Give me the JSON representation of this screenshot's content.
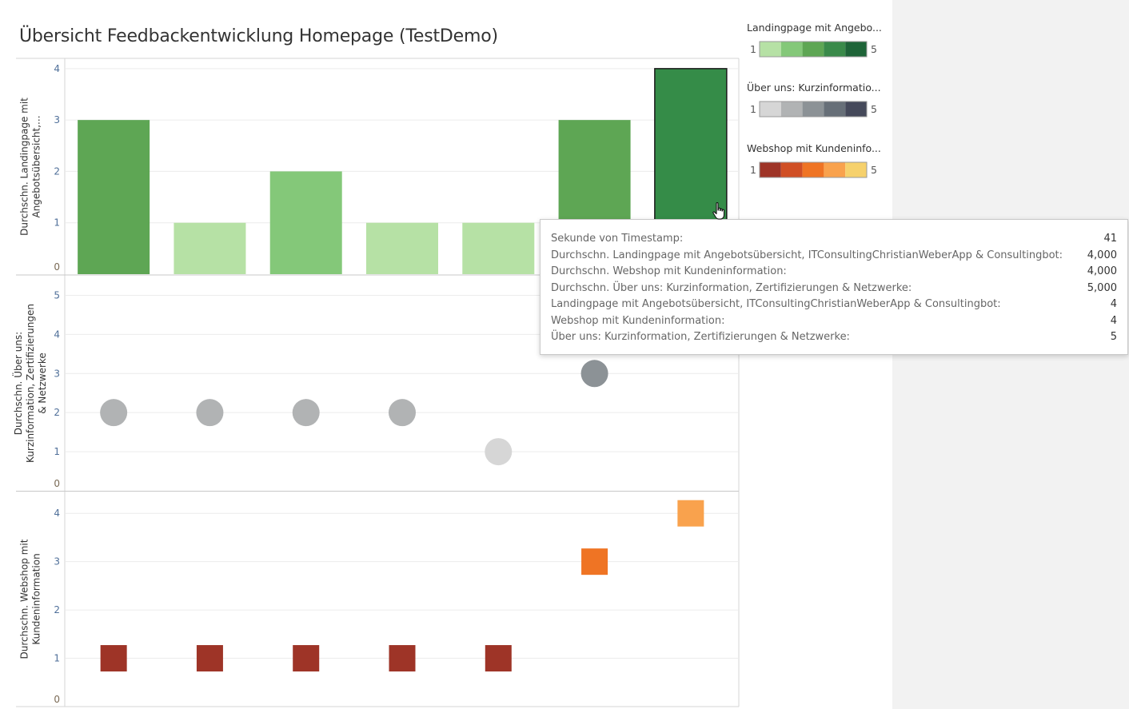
{
  "title": "Übersicht Feedbackentwicklung Homepage (TestDemo)",
  "legends": [
    {
      "title": "Landingpage mit Angebo...",
      "min": "1",
      "max": "5",
      "colors": [
        "#b6e1a5",
        "#84c879",
        "#5ea654",
        "#3a8a4a",
        "#1e6438"
      ]
    },
    {
      "title": "Über uns: Kurzinformatio...",
      "min": "1",
      "max": "5",
      "colors": [
        "#d6d6d6",
        "#b1b3b4",
        "#8c9296",
        "#676f78",
        "#45495a"
      ]
    },
    {
      "title": "Webshop mit Kundeninfo...",
      "min": "1",
      "max": "5",
      "colors": [
        "#9e3427",
        "#d04f25",
        "#ef7424",
        "#f9a24d",
        "#f6d16c"
      ]
    }
  ],
  "chart_data": [
    {
      "type": "bar",
      "ylabel": "Durchschn. Landingpage mit Angebotsübersicht,...",
      "ylim": [
        0,
        4.2
      ],
      "yticks": [
        "0",
        "1",
        "2",
        "3",
        "4"
      ],
      "values": [
        3,
        1,
        2,
        1,
        1,
        3,
        4
      ],
      "colors": [
        "#5ea654",
        "#b6e1a5",
        "#84c879",
        "#b6e1a5",
        "#b6e1a5",
        "#5ea654",
        "#358c48"
      ]
    },
    {
      "type": "scatter",
      "ylabel": "Durchschn. Über uns: Kurzinformation, Zertifizierungen & Netzwerke",
      "ylim": [
        0,
        5.5
      ],
      "yticks": [
        "0",
        "1",
        "2",
        "3",
        "4",
        "5"
      ],
      "values": [
        2,
        2,
        2,
        2,
        1,
        3,
        5
      ],
      "colors": [
        "#b1b3b4",
        "#b1b3b4",
        "#b1b3b4",
        "#b1b3b4",
        "#d6d6d6",
        "#8c9296",
        "#45495a"
      ]
    },
    {
      "type": "scatter",
      "ylabel": "Durchschn. Webshop mit Kundeninformation",
      "ylim": [
        0,
        4.45
      ],
      "yticks": [
        "0",
        "1",
        "2",
        "3",
        "4"
      ],
      "values": [
        1,
        1,
        1,
        1,
        1,
        3,
        4
      ],
      "colors": [
        "#9e3427",
        "#9e3427",
        "#9e3427",
        "#9e3427",
        "#9e3427",
        "#ef7424",
        "#f9a24d"
      ]
    }
  ],
  "tooltip": {
    "rows": [
      {
        "label": "Sekunde von Timestamp:",
        "value": "41"
      },
      {
        "label": "Durchschn. Landingpage mit Angebotsübersicht, ITConsultingChristianWeberApp & Consultingbot:",
        "value": "4,000"
      },
      {
        "label": "Durchschn. Webshop mit Kundeninformation:",
        "value": "4,000"
      },
      {
        "label": "Durchschn. Über uns: Kurzinformation, Zertifizierungen & Netzwerke:",
        "value": "5,000"
      },
      {
        "label": "Landingpage mit Angebotsübersicht, ITConsultingChristianWeberApp & Consultingbot:",
        "value": "4"
      },
      {
        "label": "Webshop mit Kundeninformation:",
        "value": "4"
      },
      {
        "label": "Über uns: Kurzinformation, Zertifizierungen & Netzwerke:",
        "value": "5"
      }
    ]
  }
}
